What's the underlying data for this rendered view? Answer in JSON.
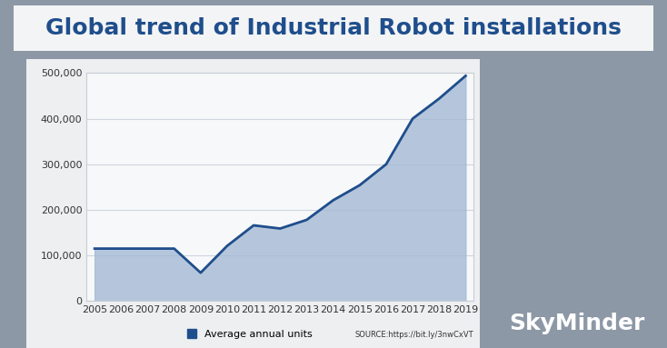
{
  "chart_data": {
    "type": "line",
    "title": "Global trend of Industrial Robot installations",
    "categories": [
      "2005",
      "2006",
      "2007",
      "2008",
      "2009",
      "2010",
      "2011",
      "2012",
      "2013",
      "2014",
      "2015",
      "2016",
      "2017",
      "2018",
      "2019"
    ],
    "series": [
      {
        "name": "Average annual units",
        "color": "#1f4e8c",
        "values": [
          115000,
          115000,
          115000,
          115000,
          62000,
          121000,
          166000,
          159000,
          178000,
          221000,
          254000,
          300000,
          400000,
          444000,
          494000
        ]
      }
    ],
    "ylim": [
      0,
      500000
    ],
    "yticks": [
      0,
      {
        "value": 100000,
        "label": "100,000"
      },
      {
        "value": 200000,
        "label": "200,000"
      },
      {
        "value": 300000,
        "label": "300,000"
      },
      {
        "value": 400000,
        "label": "400,000"
      },
      {
        "value": 500000,
        "label": "500,000"
      }
    ],
    "grid": true,
    "legend": "lower center",
    "marker": "none",
    "source": "SOURCE:https://bit.ly/3nwCxVT",
    "watermark": "SkyMinder"
  }
}
